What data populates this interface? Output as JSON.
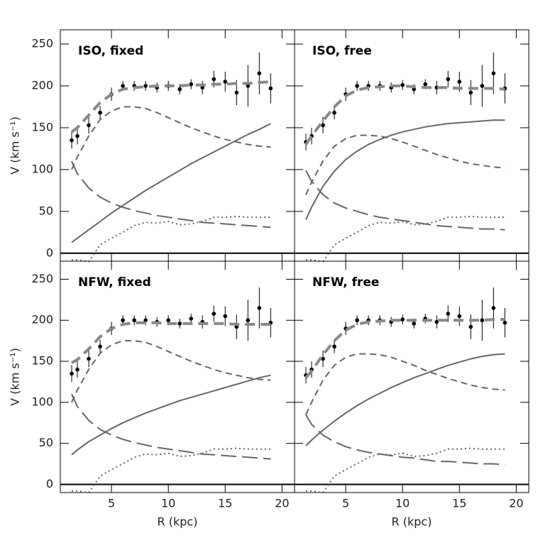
{
  "chart_data": [
    {
      "type": "line",
      "title": "ISO, fixed",
      "ylabel": "V (km s⁻¹)",
      "xtick_labels": false,
      "ytick_labels": true,
      "x": [
        1.5,
        2,
        3,
        4,
        5,
        6,
        7,
        8,
        9,
        10,
        11,
        12,
        13,
        14,
        15,
        16,
        17,
        18,
        19
      ],
      "xlim": [
        0.5,
        21.1
      ],
      "ylim": [
        -9.5,
        267
      ],
      "xticks": [
        5,
        10,
        15,
        20
      ],
      "yticks": [
        0,
        50,
        100,
        150,
        200,
        250
      ],
      "series": [
        {
          "style": "points",
          "color": "#000000",
          "values": [
            135,
            140,
            153,
            168,
            190,
            200,
            200,
            200,
            198,
            200,
            196,
            202,
            198,
            208,
            205,
            192,
            200,
            215,
            197
          ],
          "errors": [
            10,
            10,
            10,
            8,
            8,
            6,
            6,
            6,
            6,
            6,
            6,
            6,
            8,
            10,
            12,
            15,
            25,
            25,
            18
          ]
        },
        {
          "style": "thick-dash",
          "color": "#888888",
          "values": [
            145,
            150,
            165,
            180,
            190,
            196,
            198,
            199,
            200,
            200,
            200,
            201,
            201,
            202,
            202,
            203,
            203,
            204,
            205
          ]
        },
        {
          "style": "dash",
          "color": "#666666",
          "values": [
            100,
            115,
            140,
            160,
            170,
            175,
            175,
            173,
            168,
            162,
            156,
            150,
            145,
            140,
            136,
            133,
            130,
            128,
            127
          ]
        },
        {
          "style": "solid",
          "color": "#666666",
          "values": [
            13,
            18,
            28,
            38,
            48,
            57,
            66,
            75,
            83,
            91,
            99,
            107,
            114,
            121,
            128,
            135,
            142,
            148,
            155
          ]
        },
        {
          "style": "longdash",
          "color": "#666666",
          "values": [
            110,
            95,
            78,
            67,
            60,
            55,
            51,
            48,
            45,
            43,
            41,
            39,
            37,
            36,
            35,
            34,
            33,
            32,
            31
          ]
        },
        {
          "style": "dot",
          "color": "#666666",
          "values": [
            -8,
            -8,
            -10,
            10,
            18,
            25,
            33,
            37,
            36,
            38,
            34,
            35,
            38,
            43,
            43,
            44,
            43,
            43,
            43
          ]
        }
      ]
    },
    {
      "type": "line",
      "title": "ISO, free",
      "xtick_labels": false,
      "ytick_labels": false,
      "x": [
        1.5,
        2,
        3,
        4,
        5,
        6,
        7,
        8,
        9,
        10,
        11,
        12,
        13,
        14,
        15,
        16,
        17,
        18,
        19
      ],
      "xlim": [
        0.5,
        21.1
      ],
      "ylim": [
        -9.5,
        267
      ],
      "xticks": [
        5,
        10,
        15,
        20
      ],
      "yticks": [
        0,
        50,
        100,
        150,
        200,
        250
      ],
      "series": [
        {
          "style": "points",
          "color": "#000000",
          "values": [
            133,
            140,
            153,
            168,
            190,
            200,
            200,
            200,
            198,
            201,
            196,
            202,
            198,
            208,
            205,
            192,
            200,
            215,
            197
          ],
          "errors": [
            10,
            10,
            10,
            8,
            8,
            6,
            6,
            6,
            6,
            6,
            6,
            6,
            8,
            10,
            12,
            15,
            25,
            25,
            18
          ]
        },
        {
          "style": "thick-dash",
          "color": "#888888",
          "values": [
            130,
            140,
            158,
            175,
            188,
            195,
            198,
            199,
            200,
            200,
            199,
            198,
            198,
            198,
            197,
            197,
            197,
            197,
            196
          ]
        },
        {
          "style": "dash",
          "color": "#666666",
          "values": [
            70,
            85,
            110,
            128,
            137,
            141,
            141,
            140,
            137,
            133,
            128,
            123,
            118,
            114,
            110,
            107,
            105,
            103,
            102
          ]
        },
        {
          "style": "solid",
          "color": "#666666",
          "values": [
            40,
            55,
            80,
            98,
            112,
            122,
            130,
            136,
            141,
            145,
            148,
            151,
            153,
            155,
            156,
            157,
            158,
            159,
            159
          ]
        },
        {
          "style": "longdash",
          "color": "#666666",
          "values": [
            99,
            86,
            70,
            60,
            54,
            50,
            46,
            43,
            41,
            39,
            37,
            35,
            33,
            32,
            31,
            30,
            29,
            29,
            28
          ]
        },
        {
          "style": "dot",
          "color": "#666666",
          "values": [
            -8,
            -8,
            -10,
            10,
            18,
            25,
            33,
            37,
            36,
            38,
            34,
            35,
            38,
            43,
            43,
            44,
            43,
            43,
            43
          ]
        }
      ]
    },
    {
      "type": "line",
      "title": "NFW, fixed",
      "ylabel": "V (km s⁻¹)",
      "xlabel": "R (kpc)",
      "xtick_labels": true,
      "ytick_labels": true,
      "x": [
        1.5,
        2,
        3,
        4,
        5,
        6,
        7,
        8,
        9,
        10,
        11,
        12,
        13,
        14,
        15,
        16,
        17,
        18,
        19
      ],
      "xlim": [
        0.5,
        21.1
      ],
      "ylim": [
        -10,
        272
      ],
      "xticks": [
        5,
        10,
        15,
        20
      ],
      "yticks": [
        0,
        50,
        100,
        150,
        200,
        250
      ],
      "series": [
        {
          "style": "points",
          "color": "#000000",
          "values": [
            135,
            140,
            153,
            168,
            190,
            200,
            200,
            200,
            198,
            200,
            196,
            202,
            198,
            208,
            205,
            192,
            200,
            215,
            197
          ],
          "errors": [
            10,
            10,
            10,
            8,
            8,
            6,
            6,
            6,
            6,
            6,
            6,
            6,
            8,
            10,
            12,
            15,
            25,
            25,
            18
          ]
        },
        {
          "style": "thick-dash",
          "color": "#888888",
          "values": [
            148,
            152,
            165,
            180,
            190,
            195,
            197,
            197,
            197,
            196,
            196,
            196,
            196,
            196,
            196,
            195,
            195,
            195,
            195
          ]
        },
        {
          "style": "dash",
          "color": "#666666",
          "values": [
            100,
            115,
            140,
            160,
            170,
            175,
            175,
            173,
            168,
            162,
            156,
            150,
            145,
            140,
            136,
            133,
            130,
            128,
            127
          ]
        },
        {
          "style": "solid",
          "color": "#666666",
          "values": [
            36,
            42,
            52,
            60,
            68,
            75,
            81,
            87,
            92,
            97,
            102,
            106,
            110,
            114,
            118,
            122,
            126,
            130,
            133
          ]
        },
        {
          "style": "longdash",
          "color": "#666666",
          "values": [
            110,
            95,
            78,
            67,
            60,
            55,
            51,
            48,
            45,
            43,
            41,
            39,
            37,
            36,
            35,
            34,
            33,
            32,
            31
          ]
        },
        {
          "style": "dot",
          "color": "#666666",
          "values": [
            -8,
            -8,
            -10,
            10,
            18,
            25,
            33,
            37,
            36,
            38,
            34,
            35,
            38,
            43,
            43,
            44,
            43,
            43,
            43
          ]
        }
      ]
    },
    {
      "type": "line",
      "title": "NFW, free",
      "xlabel": "R (kpc)",
      "xtick_labels": true,
      "ytick_labels": false,
      "x": [
        1.5,
        2,
        3,
        4,
        5,
        6,
        7,
        8,
        9,
        10,
        11,
        12,
        13,
        14,
        15,
        16,
        17,
        18,
        19
      ],
      "xlim": [
        0.5,
        21.1
      ],
      "ylim": [
        -10,
        272
      ],
      "xticks": [
        5,
        10,
        15,
        20
      ],
      "yticks": [
        0,
        50,
        100,
        150,
        200,
        250
      ],
      "series": [
        {
          "style": "points",
          "color": "#000000",
          "values": [
            133,
            140,
            153,
            168,
            190,
            200,
            200,
            200,
            198,
            201,
            196,
            202,
            198,
            208,
            205,
            192,
            200,
            215,
            197
          ],
          "errors": [
            10,
            10,
            10,
            8,
            8,
            6,
            6,
            6,
            6,
            6,
            6,
            6,
            8,
            10,
            12,
            15,
            25,
            25,
            18
          ]
        },
        {
          "style": "thick-dash",
          "color": "#888888",
          "values": [
            130,
            138,
            158,
            175,
            188,
            195,
            198,
            199,
            200,
            200,
            200,
            200,
            200,
            200,
            200,
            200,
            200,
            201,
            201
          ]
        },
        {
          "style": "dash",
          "color": "#666666",
          "values": [
            85,
            100,
            127,
            145,
            155,
            159,
            159,
            158,
            155,
            150,
            145,
            139,
            134,
            129,
            125,
            121,
            118,
            116,
            115
          ]
        },
        {
          "style": "solid",
          "color": "#666666",
          "values": [
            47,
            54,
            66,
            77,
            87,
            96,
            104,
            111,
            118,
            124,
            130,
            135,
            140,
            145,
            149,
            153,
            156,
            158,
            159
          ]
        },
        {
          "style": "longdash",
          "color": "#666666",
          "values": [
            85,
            73,
            60,
            52,
            46,
            42,
            39,
            37,
            35,
            33,
            32,
            30,
            28,
            28,
            27,
            26,
            25,
            25,
            24
          ]
        },
        {
          "style": "dot",
          "color": "#666666",
          "values": [
            -8,
            -8,
            -10,
            10,
            18,
            25,
            33,
            37,
            36,
            38,
            34,
            35,
            38,
            43,
            43,
            44,
            43,
            43,
            43
          ]
        }
      ]
    }
  ]
}
